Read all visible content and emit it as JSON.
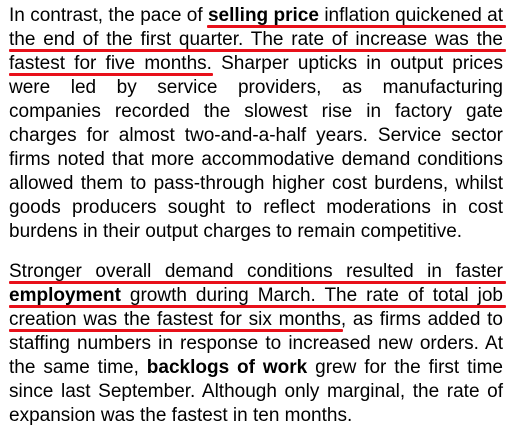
{
  "document": {
    "paragraph_1": {
      "line_1": {
        "before": "In contrast, the pace of ",
        "bold": "selling price",
        "after": " inflation quickened at"
      },
      "line_2": "the end of the first quarter. The rate of increase was the",
      "line_3": "fastest for five months. Sharper upticks in output prices",
      "line_4": "were led by service providers, as manufacturing",
      "line_5": "companies recorded the slowest rise in factory gate",
      "line_6": "charges for almost two-and-a-half years. Service sector",
      "line_7": "firms noted that more accommodative demand conditions",
      "line_8": "allowed them to pass-through higher cost burdens, whilst",
      "line_9": "goods producers sought to reflect moderations in cost",
      "line_10": "burdens in their output charges to remain competitive."
    },
    "paragraph_2": {
      "line_1": "Stronger overall demand conditions resulted in faster",
      "line_2": {
        "bold": "employment",
        "after": " growth during March. The rate of total job"
      },
      "line_3": "creation was the fastest for six months, as firms added to",
      "line_4": "staffing numbers in response to increased new orders. At",
      "line_5": {
        "before": "the same time, ",
        "bold": "backlogs of work",
        "after": " grew for the first time"
      },
      "line_6": "since last September. Although only marginal, the rate of",
      "line_7": "expansion was the fastest in ten months."
    }
  },
  "colors": {
    "highlight_underline": "#e8101a",
    "text": "#000000",
    "background": "#ffffff"
  }
}
